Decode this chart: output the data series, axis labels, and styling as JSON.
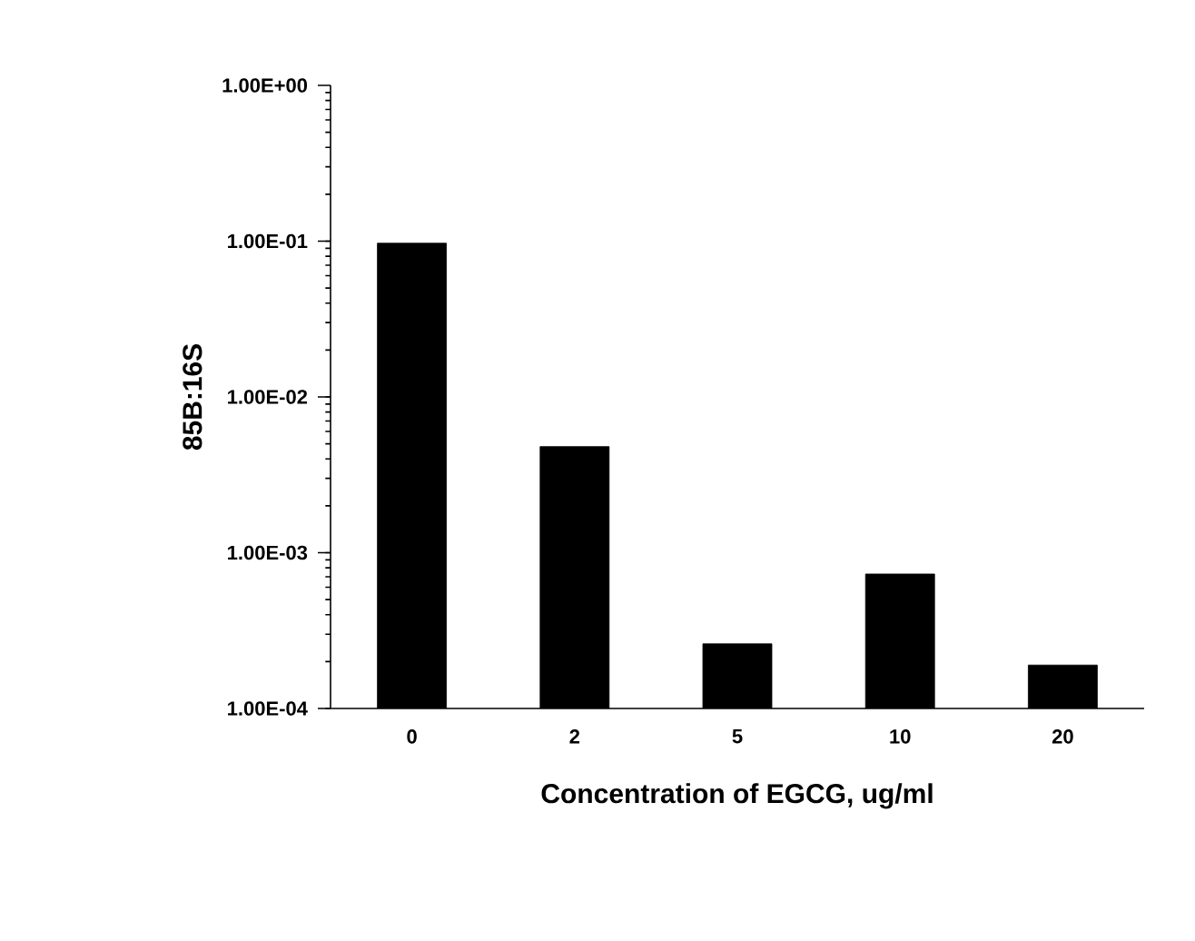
{
  "chart_data": {
    "type": "bar",
    "xlabel": "Concentration of EGCG, ug/ml",
    "ylabel": "85B:16S",
    "categories": [
      "0",
      "2",
      "5",
      "10",
      "20"
    ],
    "values": [
      0.097,
      0.0048,
      0.00026,
      0.00073,
      0.00019
    ],
    "color": "#000000",
    "log": "y",
    "ylim": [
      0.0001,
      1
    ],
    "yticks": [
      {
        "value": 0.0001,
        "label": "1.00E-04"
      },
      {
        "value": 0.001,
        "label": "1.00E-03"
      },
      {
        "value": 0.01,
        "label": "1.00E-02"
      },
      {
        "value": 0.1,
        "label": "1.00E-01"
      },
      {
        "value": 1,
        "label": "1.00E+00"
      }
    ]
  }
}
